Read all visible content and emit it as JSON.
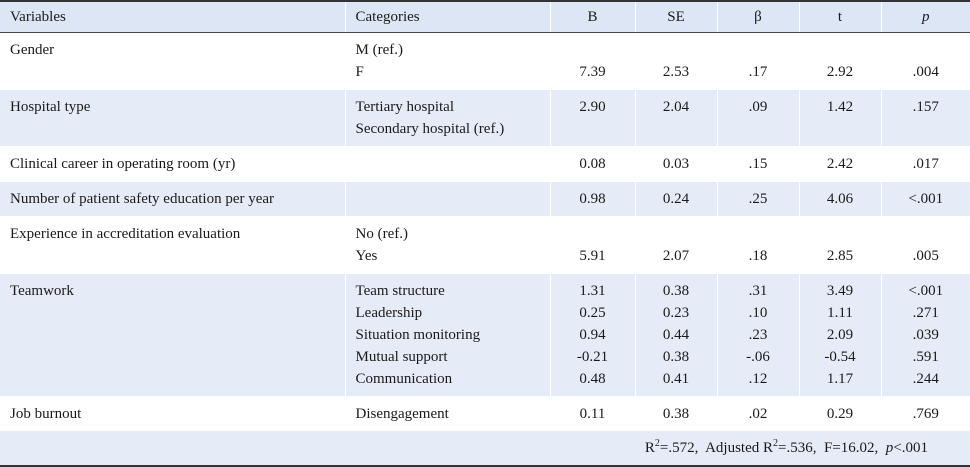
{
  "header": {
    "variables": "Variables",
    "categories": "Categories",
    "b": "B",
    "se": "SE",
    "beta": "β",
    "t": "t",
    "p": "p"
  },
  "rows": [
    {
      "variable": "Gender",
      "categories": [
        "M (ref.)",
        "F"
      ],
      "b": [
        "",
        "7.39"
      ],
      "se": [
        "",
        "2.53"
      ],
      "beta": [
        "",
        ".17"
      ],
      "t": [
        "",
        "2.92"
      ],
      "p": [
        "",
        ".004"
      ]
    },
    {
      "variable": "Hospital type",
      "categories": [
        "Tertiary hospital",
        "Secondary hospital (ref.)"
      ],
      "b": [
        "2.90",
        ""
      ],
      "se": [
        "2.04",
        ""
      ],
      "beta": [
        ".09",
        ""
      ],
      "t": [
        "1.42",
        ""
      ],
      "p": [
        ".157",
        ""
      ]
    },
    {
      "variable": "Clinical career in operating room (yr)",
      "categories": [
        ""
      ],
      "b": [
        "0.08"
      ],
      "se": [
        "0.03"
      ],
      "beta": [
        ".15"
      ],
      "t": [
        "2.42"
      ],
      "p": [
        ".017"
      ]
    },
    {
      "variable": "Number of patient safety education per year",
      "categories": [
        ""
      ],
      "b": [
        "0.98"
      ],
      "se": [
        "0.24"
      ],
      "beta": [
        ".25"
      ],
      "t": [
        "4.06"
      ],
      "p": [
        "<.001"
      ]
    },
    {
      "variable": "Experience in accreditation evaluation",
      "categories": [
        "No (ref.)",
        "Yes"
      ],
      "b": [
        "",
        "5.91"
      ],
      "se": [
        "",
        "2.07"
      ],
      "beta": [
        "",
        ".18"
      ],
      "t": [
        "",
        "2.85"
      ],
      "p": [
        "",
        ".005"
      ]
    },
    {
      "variable": "Teamwork",
      "categories": [
        "Team structure",
        "Leadership",
        "Situation monitoring",
        "Mutual support",
        "Communication"
      ],
      "b": [
        "1.31",
        "0.25",
        "0.94",
        "-0.21",
        "0.48"
      ],
      "se": [
        "0.38",
        "0.23",
        "0.44",
        "0.38",
        "0.41"
      ],
      "beta": [
        ".31",
        ".10",
        ".23",
        "-.06",
        ".12"
      ],
      "t": [
        "3.49",
        "1.11",
        "2.09",
        "-0.54",
        "1.17"
      ],
      "p": [
        "<.001",
        ".271",
        ".039",
        ".591",
        ".244"
      ]
    },
    {
      "variable": "Job burnout",
      "categories": [
        "Disengagement"
      ],
      "b": [
        "0.11"
      ],
      "se": [
        "0.38"
      ],
      "beta": [
        ".02"
      ],
      "t": [
        "0.29"
      ],
      "p": [
        ".769"
      ]
    }
  ],
  "footer": {
    "r2_prefix": "R",
    "r2_sup": "2",
    "r2_value": "=.572,",
    "adj_prefix": "Adjusted R",
    "adj_sup": "2",
    "adj_value": "=.536,",
    "f_stat": "F=16.02,",
    "p_label": "p",
    "p_value": "<.001"
  }
}
